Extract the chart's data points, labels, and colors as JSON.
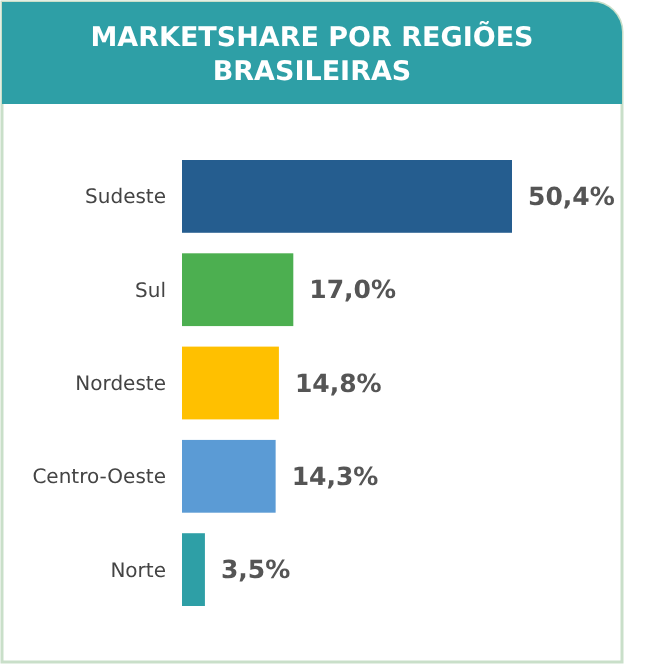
{
  "chart_data": {
    "type": "bar",
    "orientation": "horizontal",
    "title": "MARKETSHARE POR REGIÕES BRASILEIRAS",
    "categories": [
      "Sudeste",
      "Sul",
      "Nordeste",
      "Centro-Oeste",
      "Norte"
    ],
    "values": [
      50.4,
      17.0,
      14.8,
      14.3,
      3.5
    ],
    "colors": [
      "#255d8f",
      "#4caf50",
      "#ffc000",
      "#5b9bd5",
      "#2e9fa6"
    ],
    "value_labels": [
      "50,4%",
      "17,0%",
      "14,8%",
      "14,3%",
      "3,5%"
    ]
  }
}
